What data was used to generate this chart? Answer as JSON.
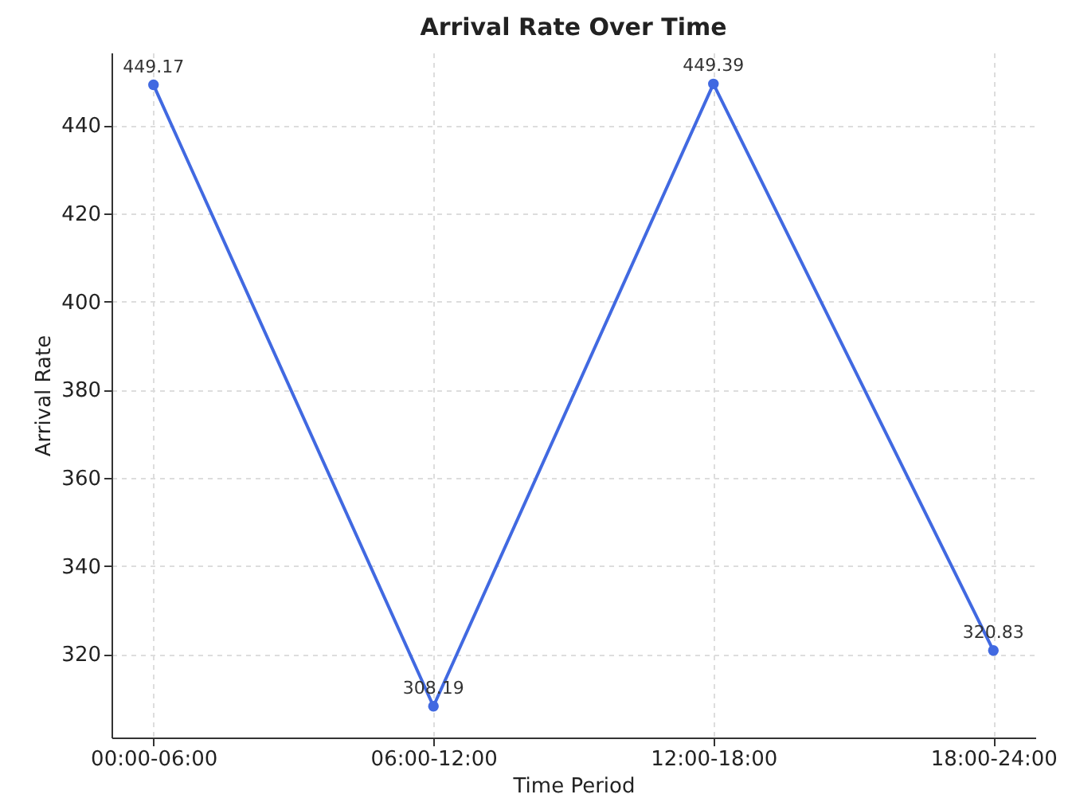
{
  "chart_data": {
    "type": "line",
    "title": "Arrival Rate Over Time",
    "xlabel": "Time Period",
    "ylabel": "Arrival Rate",
    "categories": [
      "00:00-06:00",
      "06:00-12:00",
      "12:00-18:00",
      "18:00-24:00"
    ],
    "series": [
      {
        "color": "#4169e1",
        "values": [
          449.17,
          308.19,
          449.39,
          320.83
        ]
      }
    ],
    "ylim": [
      301.1,
      456.5
    ],
    "yticks": [
      320,
      340,
      360,
      380,
      400,
      420,
      440
    ],
    "grid": true,
    "marker": "circle",
    "line_style": "solid",
    "data_labels": true
  }
}
